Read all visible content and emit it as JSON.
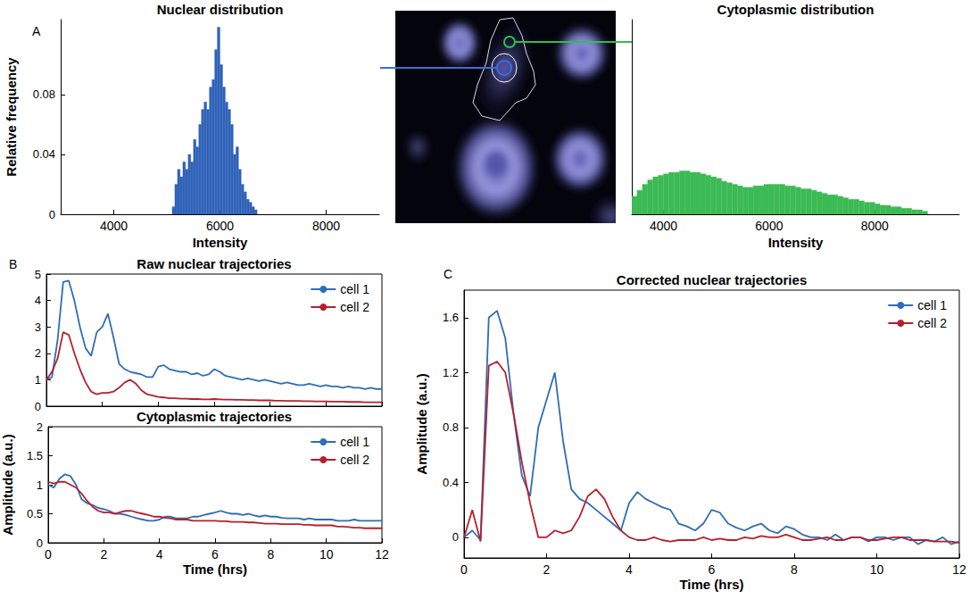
{
  "chart_data": [
    {
      "type": "histogram",
      "panel": "A",
      "title": "Nuclear distribution",
      "xlabel": "Intensity",
      "ylabel": "Relative frequency",
      "bins": [
        5100,
        5150,
        5200,
        5250,
        5300,
        5350,
        5400,
        5450,
        5500,
        5550,
        5600,
        5650,
        5700,
        5750,
        5800,
        5850,
        5900,
        5950,
        6000,
        6050,
        6100,
        6150,
        6200,
        6250,
        6300,
        6350,
        6400,
        6450,
        6500,
        6550,
        6600,
        6650,
        6700
      ],
      "values": [
        0.005,
        0.02,
        0.03,
        0.025,
        0.035,
        0.03,
        0.04,
        0.035,
        0.05,
        0.045,
        0.06,
        0.07,
        0.075,
        0.07,
        0.085,
        0.09,
        0.11,
        0.125,
        0.1,
        0.085,
        0.075,
        0.07,
        0.06,
        0.04,
        0.045,
        0.03,
        0.02,
        0.015,
        0.01,
        0.008,
        0.005,
        0.003
      ],
      "color": "#2f62b8",
      "xlim": [
        3000,
        9000
      ],
      "xticks": [
        4000,
        6000,
        8000
      ],
      "ylim": [
        0,
        0.13
      ],
      "yticks": [
        0,
        0.04,
        0.08
      ],
      "grid": false
    },
    {
      "type": "histogram",
      "title": "Cytoplasmic distribution",
      "xlabel": "Intensity",
      "bins": [
        3400,
        3500,
        3600,
        3700,
        3800,
        3900,
        4000,
        4100,
        4200,
        4300,
        4400,
        4500,
        4600,
        4700,
        4800,
        4900,
        5000,
        5100,
        5200,
        5300,
        5400,
        5500,
        5600,
        5700,
        5800,
        5900,
        6000,
        6100,
        6200,
        6300,
        6400,
        6500,
        6600,
        6700,
        6800,
        6900,
        7000,
        7100,
        7200,
        7300,
        7400,
        7500,
        7600,
        7700,
        7800,
        7900,
        8000,
        8100,
        8200,
        8300,
        8400,
        8500,
        8600,
        8700,
        8800,
        8900,
        9000
      ],
      "values": [
        0.012,
        0.016,
        0.02,
        0.023,
        0.025,
        0.026,
        0.027,
        0.028,
        0.028,
        0.029,
        0.029,
        0.028,
        0.028,
        0.027,
        0.026,
        0.025,
        0.024,
        0.022,
        0.021,
        0.02,
        0.019,
        0.018,
        0.018,
        0.019,
        0.019,
        0.02,
        0.02,
        0.02,
        0.02,
        0.019,
        0.019,
        0.018,
        0.017,
        0.017,
        0.016,
        0.015,
        0.014,
        0.013,
        0.013,
        0.012,
        0.011,
        0.01,
        0.01,
        0.009,
        0.008,
        0.008,
        0.007,
        0.006,
        0.006,
        0.005,
        0.005,
        0.004,
        0.004,
        0.003,
        0.003,
        0.002
      ],
      "color": "#3cba54",
      "xlim": [
        3400,
        9600
      ],
      "xticks": [
        4000,
        6000,
        8000
      ],
      "ylim": [
        0,
        0.13
      ],
      "tick_labels": "x",
      "grid": false
    },
    {
      "type": "line",
      "panel": "B",
      "title": "Raw nuclear trajectories",
      "x": [
        0,
        0.2,
        0.4,
        0.6,
        0.8,
        1,
        1.2,
        1.4,
        1.6,
        1.8,
        2,
        2.2,
        2.4,
        2.6,
        2.8,
        3,
        3.2,
        3.4,
        3.6,
        3.8,
        4,
        4.2,
        4.4,
        4.6,
        4.8,
        5,
        5.2,
        5.4,
        5.6,
        5.8,
        6,
        6.2,
        6.4,
        6.6,
        6.8,
        7,
        7.2,
        7.4,
        7.6,
        7.8,
        8,
        8.2,
        8.4,
        8.6,
        8.8,
        9,
        9.2,
        9.4,
        9.6,
        9.8,
        10,
        10.2,
        10.4,
        10.6,
        10.8,
        11,
        11.2,
        11.4,
        11.6,
        11.8,
        12
      ],
      "series": [
        {
          "name": "cell 1",
          "color": "#2f6db5",
          "values": [
            1.0,
            1.1,
            2.5,
            4.7,
            4.75,
            4.0,
            3.0,
            2.2,
            1.9,
            2.8,
            3.0,
            3.5,
            2.6,
            1.6,
            1.4,
            1.3,
            1.25,
            1.2,
            1.1,
            1.1,
            1.5,
            1.55,
            1.4,
            1.35,
            1.3,
            1.3,
            1.2,
            1.25,
            1.15,
            1.2,
            1.4,
            1.3,
            1.15,
            1.1,
            1.05,
            1.0,
            1.05,
            1.0,
            0.95,
            1.0,
            0.95,
            0.9,
            0.85,
            0.9,
            0.85,
            0.8,
            0.8,
            0.85,
            0.8,
            0.75,
            0.8,
            0.75,
            0.75,
            0.7,
            0.75,
            0.7,
            0.7,
            0.65,
            0.7,
            0.65,
            0.65
          ]
        },
        {
          "name": "cell 2",
          "color": "#b5202e",
          "values": [
            1.0,
            1.3,
            1.8,
            2.8,
            2.7,
            2.0,
            1.4,
            0.9,
            0.55,
            0.45,
            0.5,
            0.5,
            0.55,
            0.7,
            0.9,
            1.0,
            0.85,
            0.6,
            0.45,
            0.4,
            0.35,
            0.33,
            0.3,
            0.3,
            0.28,
            0.28,
            0.27,
            0.27,
            0.26,
            0.26,
            0.27,
            0.26,
            0.25,
            0.25,
            0.24,
            0.24,
            0.23,
            0.23,
            0.22,
            0.22,
            0.22,
            0.21,
            0.21,
            0.2,
            0.2,
            0.2,
            0.19,
            0.19,
            0.18,
            0.18,
            0.18,
            0.17,
            0.17,
            0.17,
            0.16,
            0.16,
            0.16,
            0.15,
            0.15,
            0.15,
            0.15
          ]
        }
      ],
      "xlim": [
        0,
        12
      ],
      "xticks": [
        0,
        2,
        4,
        6,
        8,
        10,
        12
      ],
      "ylim": [
        0,
        5
      ],
      "yticks": [
        0,
        1,
        2,
        3,
        4,
        5
      ],
      "tick_labels": "y",
      "legend": "upper right",
      "grid": false
    },
    {
      "type": "line",
      "title": "Cytoplasmic trajectories",
      "xlabel": "Time (hrs)",
      "ylabel": "Amplitude (a.u.)",
      "x": [
        0,
        0.2,
        0.4,
        0.6,
        0.8,
        1,
        1.2,
        1.4,
        1.6,
        1.8,
        2,
        2.2,
        2.4,
        2.6,
        2.8,
        3,
        3.2,
        3.4,
        3.6,
        3.8,
        4,
        4.2,
        4.4,
        4.6,
        4.8,
        5,
        5.2,
        5.4,
        5.6,
        5.8,
        6,
        6.2,
        6.4,
        6.6,
        6.8,
        7,
        7.2,
        7.4,
        7.6,
        7.8,
        8,
        8.2,
        8.4,
        8.6,
        8.8,
        9,
        9.2,
        9.4,
        9.6,
        9.8,
        10,
        10.2,
        10.4,
        10.6,
        10.8,
        11,
        11.2,
        11.4,
        11.6,
        11.8,
        12
      ],
      "series": [
        {
          "name": "cell 1",
          "color": "#2f6db5",
          "values": [
            1.0,
            0.95,
            1.1,
            1.18,
            1.15,
            1.0,
            0.75,
            0.68,
            0.65,
            0.6,
            0.58,
            0.55,
            0.5,
            0.5,
            0.48,
            0.45,
            0.42,
            0.4,
            0.38,
            0.38,
            0.4,
            0.45,
            0.45,
            0.42,
            0.42,
            0.42,
            0.45,
            0.45,
            0.48,
            0.5,
            0.52,
            0.55,
            0.52,
            0.5,
            0.5,
            0.48,
            0.5,
            0.47,
            0.45,
            0.47,
            0.45,
            0.45,
            0.43,
            0.42,
            0.42,
            0.42,
            0.4,
            0.42,
            0.4,
            0.4,
            0.4,
            0.4,
            0.38,
            0.38,
            0.38,
            0.4,
            0.38,
            0.38,
            0.38,
            0.38,
            0.38
          ]
        },
        {
          "name": "cell 2",
          "color": "#b5202e",
          "values": [
            1.05,
            1.02,
            1.05,
            1.05,
            1.0,
            0.95,
            0.85,
            0.72,
            0.62,
            0.55,
            0.52,
            0.52,
            0.5,
            0.53,
            0.55,
            0.55,
            0.52,
            0.5,
            0.48,
            0.45,
            0.45,
            0.43,
            0.42,
            0.4,
            0.4,
            0.4,
            0.38,
            0.38,
            0.38,
            0.38,
            0.38,
            0.37,
            0.37,
            0.36,
            0.36,
            0.36,
            0.35,
            0.35,
            0.34,
            0.33,
            0.33,
            0.33,
            0.32,
            0.32,
            0.32,
            0.32,
            0.31,
            0.31,
            0.3,
            0.3,
            0.3,
            0.3,
            0.28,
            0.28,
            0.27,
            0.26,
            0.26,
            0.25,
            0.25,
            0.25,
            0.25
          ]
        }
      ],
      "xlim": [
        0,
        12
      ],
      "xticks": [
        0,
        2,
        4,
        6,
        8,
        10,
        12
      ],
      "ylim": [
        0,
        2
      ],
      "yticks": [
        0,
        0.5,
        1,
        1.5,
        2
      ],
      "legend": "upper right",
      "grid": false
    },
    {
      "type": "line",
      "panel": "C",
      "title": "Corrected nuclear trajectories",
      "xlabel": "Time (hrs)",
      "ylabel": "Amplitude (a.u.)",
      "x": [
        0,
        0.2,
        0.4,
        0.6,
        0.8,
        1,
        1.2,
        1.4,
        1.6,
        1.8,
        2,
        2.2,
        2.4,
        2.6,
        2.8,
        3,
        3.2,
        3.4,
        3.6,
        3.8,
        4,
        4.2,
        4.4,
        4.6,
        4.8,
        5,
        5.2,
        5.4,
        5.6,
        5.8,
        6,
        6.2,
        6.4,
        6.6,
        6.8,
        7,
        7.2,
        7.4,
        7.6,
        7.8,
        8,
        8.2,
        8.4,
        8.6,
        8.8,
        9,
        9.2,
        9.4,
        9.6,
        9.8,
        10,
        10.2,
        10.4,
        10.6,
        10.8,
        11,
        11.2,
        11.4,
        11.6,
        11.8,
        12
      ],
      "series": [
        {
          "name": "cell 1",
          "color": "#2f6db5",
          "values": [
            0,
            0.05,
            -0.02,
            1.6,
            1.65,
            1.45,
            0.9,
            0.45,
            0.3,
            0.8,
            1.0,
            1.2,
            0.7,
            0.35,
            0.28,
            0.25,
            0.2,
            0.15,
            0.1,
            0.05,
            0.25,
            0.33,
            0.28,
            0.25,
            0.22,
            0.2,
            0.1,
            0.08,
            0.05,
            0.1,
            0.2,
            0.18,
            0.1,
            0.07,
            0.05,
            0.08,
            0.1,
            0.05,
            0.03,
            0.08,
            0.06,
            0.02,
            0,
            0,
            -0.02,
            0.02,
            -0.02,
            0,
            0,
            -0.03,
            0,
            0,
            -0.02,
            0,
            0,
            -0.05,
            -0.02,
            -0.03,
            0,
            -0.05,
            -0.03
          ]
        },
        {
          "name": "cell 2",
          "color": "#b5202e",
          "values": [
            0,
            0.2,
            -0.03,
            1.25,
            1.28,
            1.2,
            0.9,
            0.55,
            0.25,
            0,
            0,
            0.05,
            0.03,
            0.05,
            0.15,
            0.3,
            0.35,
            0.28,
            0.15,
            0.05,
            0,
            -0.02,
            -0.02,
            0,
            -0.02,
            -0.03,
            -0.02,
            -0.02,
            -0.02,
            0,
            -0.02,
            -0.01,
            -0.02,
            -0.02,
            0,
            -0.01,
            0.01,
            0,
            0,
            0.02,
            0,
            -0.02,
            -0.02,
            -0.01,
            0,
            -0.02,
            -0.02,
            0,
            0,
            -0.02,
            -0.02,
            -0.01,
            0,
            0,
            -0.02,
            -0.02,
            -0.02,
            -0.03,
            -0.03,
            -0.03,
            -0.04
          ]
        }
      ],
      "xlim": [
        0,
        12
      ],
      "xticks": [
        0,
        2,
        4,
        6,
        8,
        10,
        12
      ],
      "ylim": [
        -0.15,
        1.8
      ],
      "yticks": [
        0,
        0.4,
        0.8,
        1.2,
        1.6
      ],
      "legend": "upper right",
      "grid": false
    }
  ]
}
